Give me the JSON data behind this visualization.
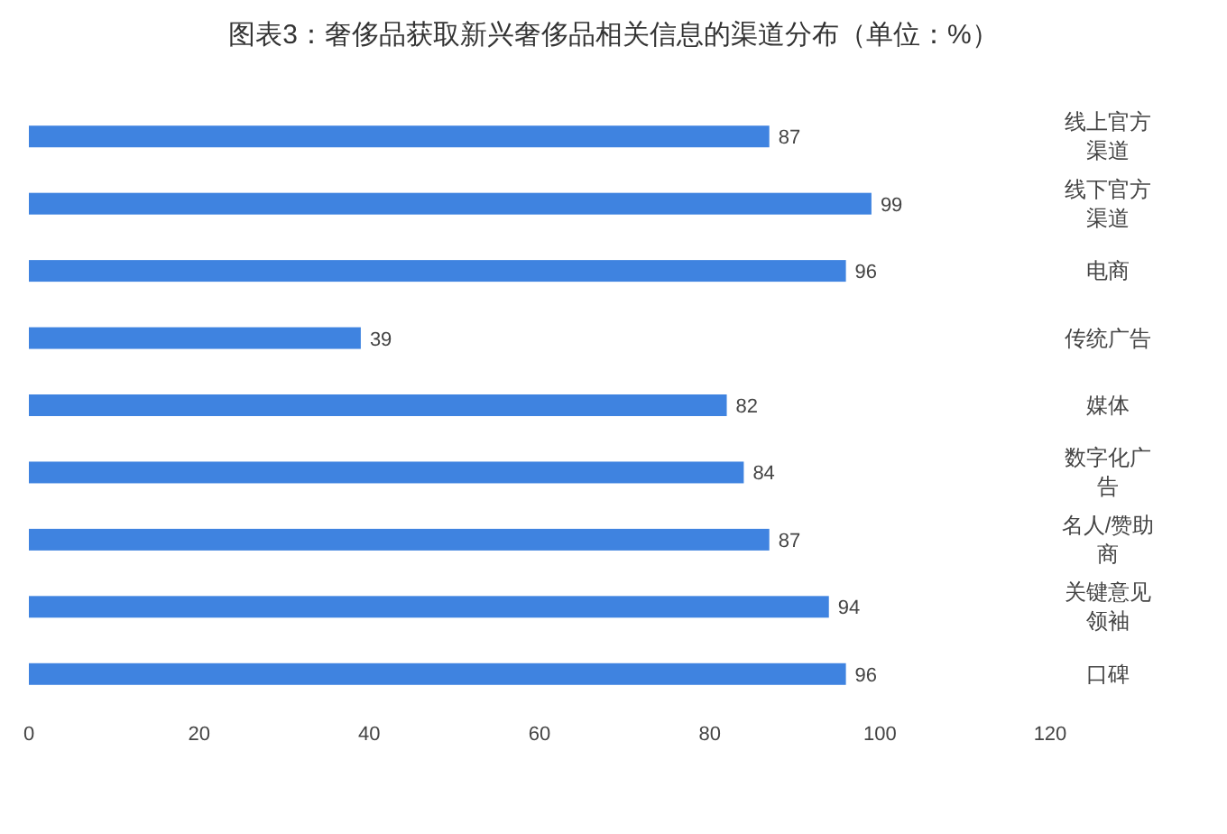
{
  "chart_data": {
    "type": "bar",
    "orientation": "horizontal",
    "title": "图表3：奢侈品获取新兴奢侈品相关信息的渠道分布（单位：%）",
    "categories": [
      "线上官方渠道",
      "线下官方渠道",
      "电商",
      "传统广告",
      "媒体",
      "数字化广告",
      "名人/赞助商",
      "关键意见领袖",
      "口碑"
    ],
    "values": [
      87,
      99,
      96,
      39,
      82,
      84,
      87,
      94,
      96
    ],
    "color": "#3f83e0",
    "xlim": [
      0,
      120
    ],
    "xticks": [
      0,
      20,
      40,
      60,
      80,
      100,
      120
    ],
    "data_labels": true
  }
}
